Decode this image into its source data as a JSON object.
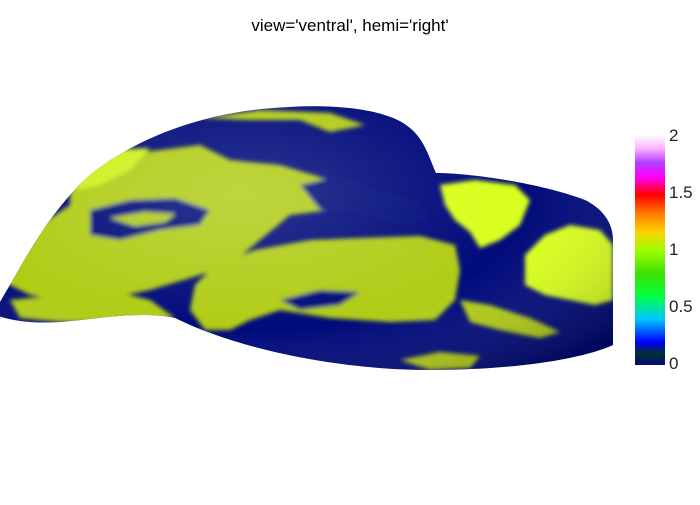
{
  "title": "view='ventral', hemi='right'",
  "colorbar": {
    "ticks": [
      "2",
      "1.5",
      "1",
      "0.5",
      "0"
    ],
    "range": [
      0,
      2
    ],
    "colors": {
      "low": "#000a7a",
      "green": "#00c800",
      "yellow_green": "#b5cf18",
      "yellow": "#ffd000",
      "orange": "#ff7a00",
      "red": "#ff0000",
      "magenta": "#ff00ff",
      "violet": "#b040ff",
      "high": "#ffffff"
    }
  },
  "surface": {
    "background_color": "#000a7a",
    "patch_color": "#b0cc18",
    "patch_color_bright": "#d8ff1a"
  }
}
